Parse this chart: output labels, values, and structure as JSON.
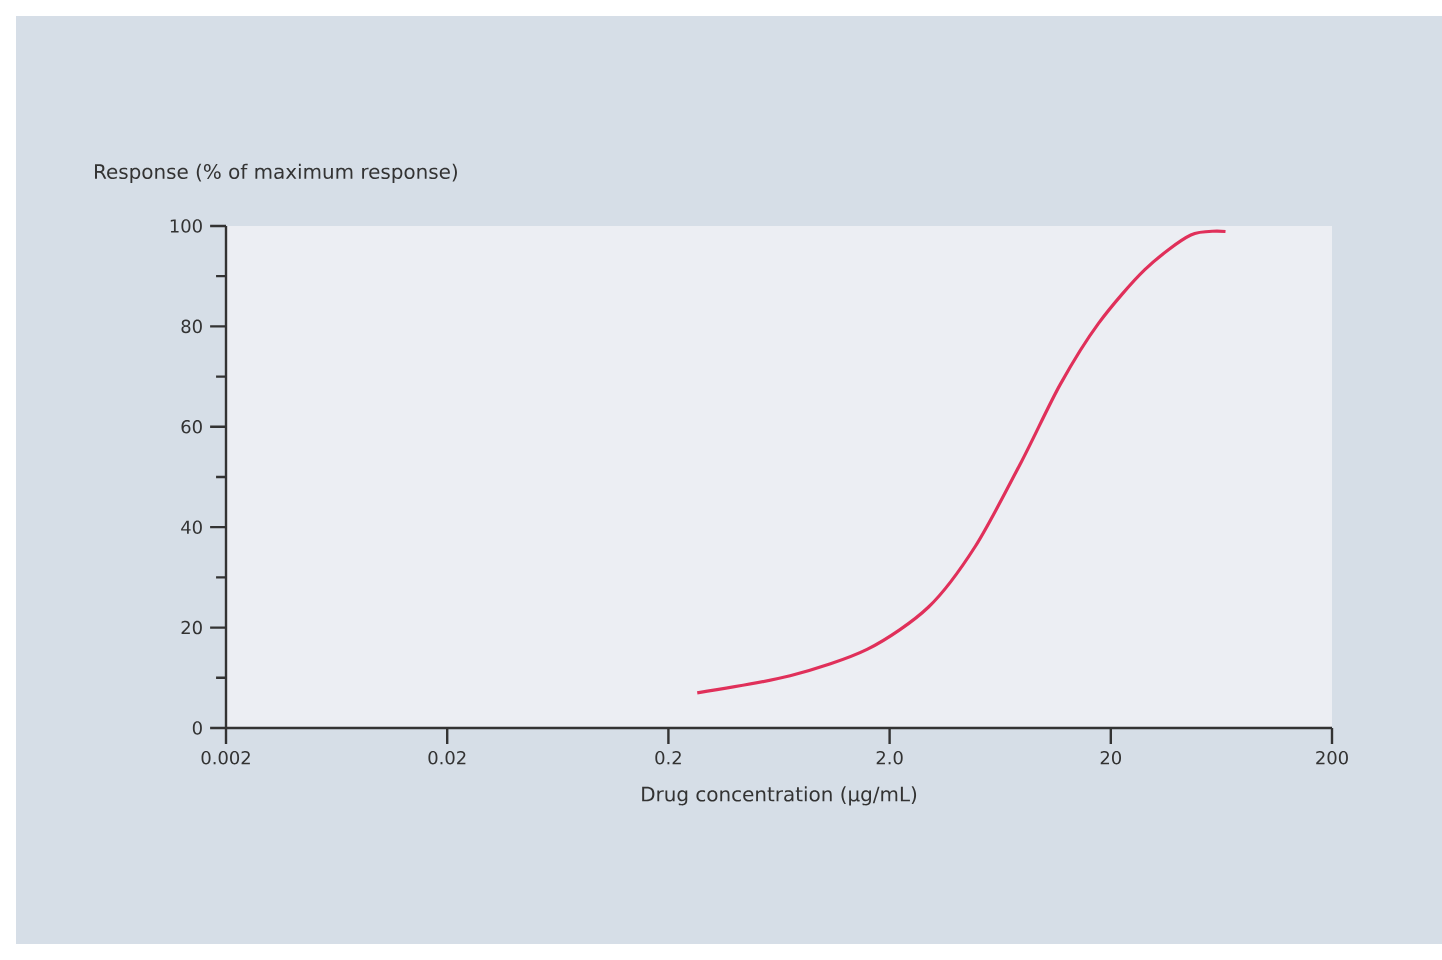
{
  "chart_data": {
    "type": "line",
    "ylabel": "Response (% of maximum response)",
    "xlabel": "Drug concentration (µg/mL)",
    "log": "x",
    "xlim": [
      0.002,
      200
    ],
    "ylim": [
      0,
      100
    ],
    "xticks": [
      0.002,
      0.02,
      0.2,
      {
        "value": 2,
        "label": "2.0"
      },
      20,
      200
    ],
    "yticks": [
      0,
      {
        "value": 10,
        "label": null
      },
      20,
      {
        "value": 30,
        "label": null
      },
      40,
      {
        "value": 50,
        "label": null
      },
      60,
      {
        "value": 70,
        "label": null
      },
      80,
      {
        "value": 90,
        "label": null
      },
      100
    ],
    "grid": false,
    "marker": "none",
    "line_style": "solid",
    "series": [
      {
        "color": "#e0305a",
        "x": [
          0.27,
          0.71,
          1.59,
          3.0,
          4.9,
          7.9,
          11.8,
          17.6,
          28.5,
          46,
          66
        ],
        "values": [
          7.0,
          10.4,
          15.7,
          24.1,
          36.3,
          53.1,
          68.4,
          80.6,
          91.3,
          98.2,
          98.9
        ]
      }
    ]
  }
}
